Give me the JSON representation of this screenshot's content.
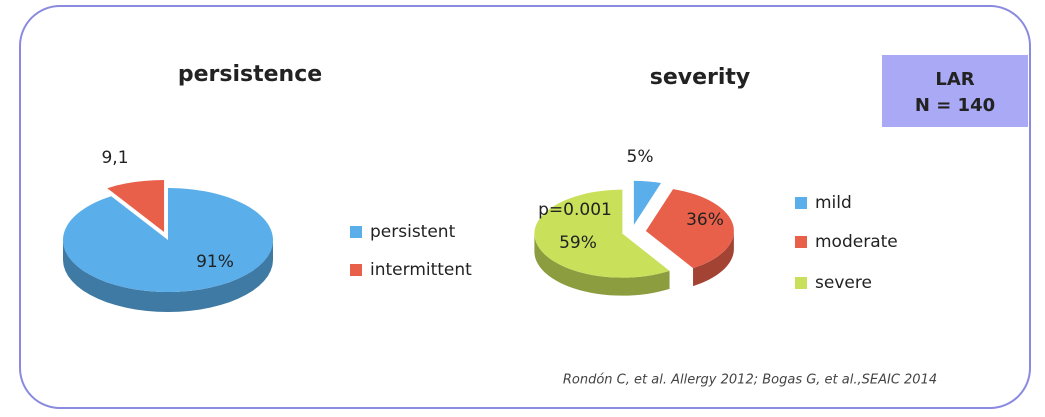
{
  "chart_data": [
    {
      "type": "pie",
      "title": "persistence",
      "categories": [
        "persistent",
        "intermittent"
      ],
      "values": [
        91,
        9.1
      ],
      "value_labels": [
        "91%",
        "9,1"
      ],
      "colors": [
        "#5aaeea",
        "#e8604a"
      ]
    },
    {
      "type": "pie",
      "title": "severity",
      "categories": [
        "mild",
        "moderate",
        "severe"
      ],
      "values": [
        5,
        36,
        59
      ],
      "value_labels": [
        "5%",
        "36%",
        "59%"
      ],
      "colors": [
        "#5aaeea",
        "#e8604a",
        "#c8e05a"
      ],
      "annotation": "p=0.001"
    }
  ],
  "badge": {
    "lines": [
      "LAR",
      "N = 140"
    ]
  },
  "citation": "Rondón C, et al. Allergy 2012; Bogas G, et al.,SEAIC 2014"
}
